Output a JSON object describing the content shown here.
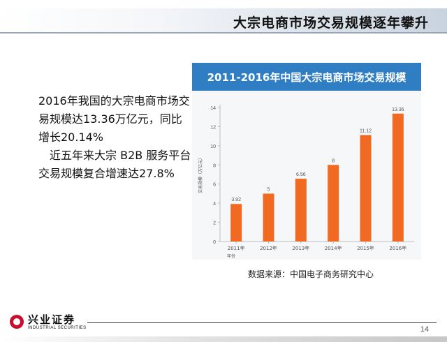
{
  "slide": {
    "title": "大宗电商市场交易规模逐年攀升",
    "paragraphs": [
      "2016年我国的大宗电商市场交易规模达13.36万亿元，同比增长20.14%",
      "近五年来大宗 B2B 服务平台交易规模复合增速达27.8%"
    ],
    "source": "数据来源：中国电子商务研究中心",
    "page_number": "14"
  },
  "logo": {
    "name_cn": "兴业证券",
    "name_en": "INDUSTRIAL SECURITIES"
  },
  "colors": {
    "bar": "#f26a21",
    "title_band": "#2f7ec4",
    "axis": "#bdbdbd"
  },
  "chart_data": {
    "type": "bar",
    "title": "2011-2016年中国大宗电商市场交易规模",
    "categories": [
      "2011年",
      "2012年",
      "2013年",
      "2014年",
      "2015年",
      "2016年"
    ],
    "values": [
      3.92,
      5,
      6.56,
      8,
      11.12,
      13.36
    ],
    "data_labels": [
      "3.92",
      "5",
      "6.56",
      "8",
      "11.12",
      "13.36"
    ],
    "ylabel": "交易规模（万亿元）",
    "xlabel": "年份",
    "ylim": [
      0,
      14
    ],
    "yticks": [
      0,
      2,
      4,
      6,
      8,
      10,
      12,
      14
    ],
    "grid": false,
    "legend": "none"
  }
}
